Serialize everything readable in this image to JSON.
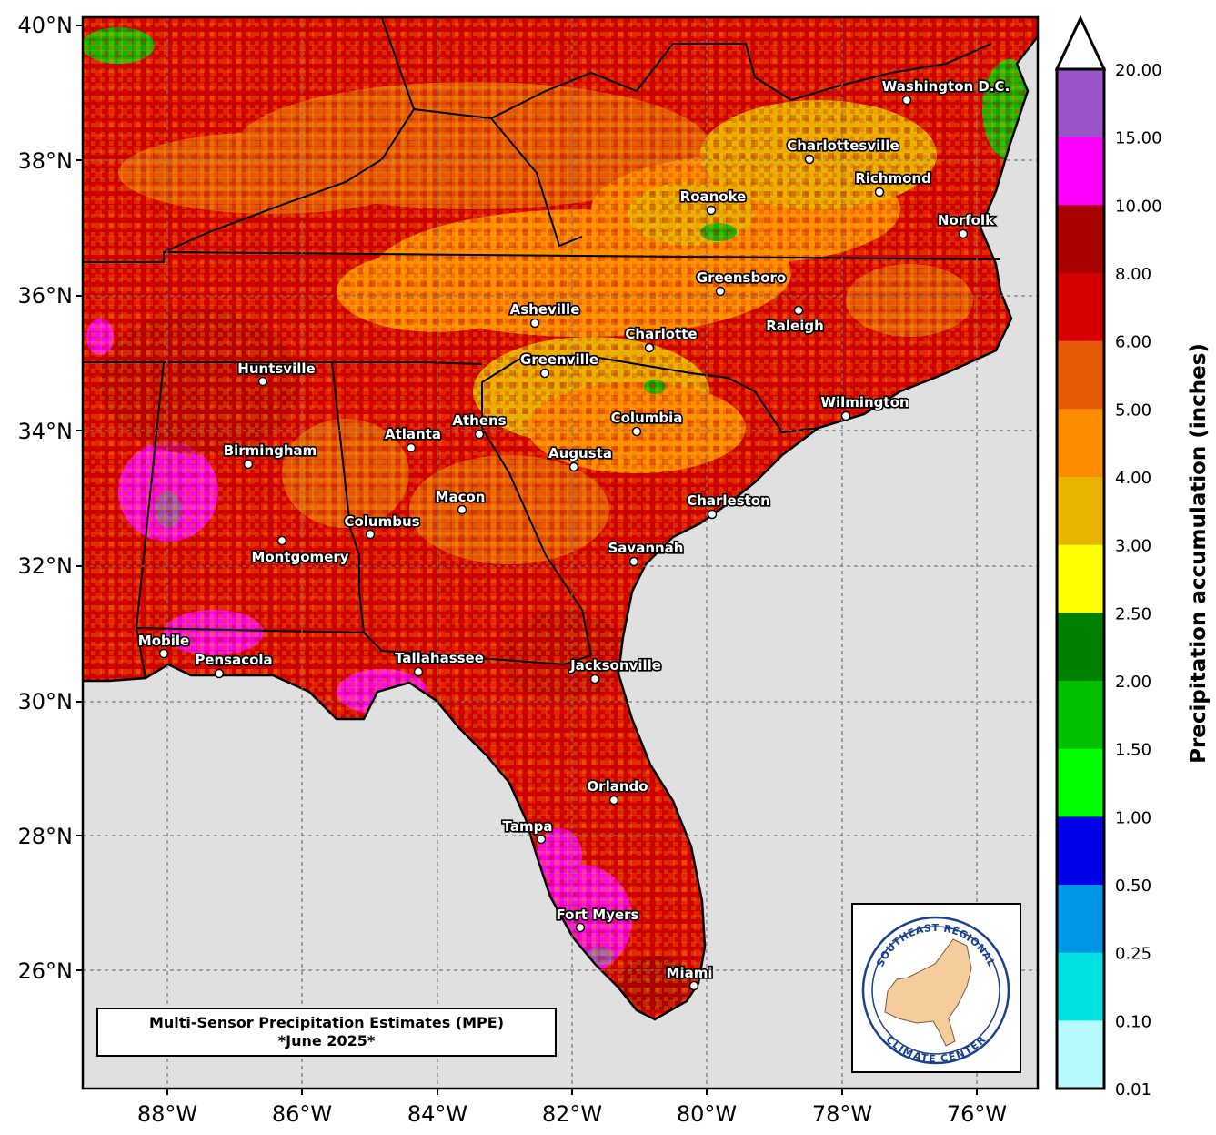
{
  "title": {
    "line1": "Multi-Sensor Precipitation Estimates (MPE)",
    "line2": "*June 2025*"
  },
  "axes": {
    "lat_labels": [
      "40°N",
      "38°N",
      "36°N",
      "34°N",
      "32°N",
      "30°N",
      "28°N",
      "26°N"
    ],
    "lon_labels": [
      "88°W",
      "86°W",
      "84°W",
      "82°W",
      "80°W",
      "78°W",
      "76°W"
    ]
  },
  "colorbar": {
    "title": "Precipitation accumulation (inches)",
    "levels": [
      "20.00",
      "15.00",
      "10.00",
      "8.00",
      "6.00",
      "5.00",
      "4.00",
      "3.00",
      "2.50",
      "2.00",
      "1.50",
      "1.00",
      "0.50",
      "0.25",
      "0.10",
      "0.01"
    ],
    "colors": [
      "#9a55c9",
      "#ff00ff",
      "#aa0000",
      "#d60000",
      "#e65b08",
      "#ff8c00",
      "#e8b400",
      "#ffff00",
      "#007f00",
      "#00c000",
      "#00ff00",
      "#0000e8",
      "#0096e8",
      "#00e1e1",
      "#b5fbfb"
    ]
  },
  "cities": [
    {
      "name": "Washington D.C."
    },
    {
      "name": "Charlottesville"
    },
    {
      "name": "Richmond"
    },
    {
      "name": "Roanoke"
    },
    {
      "name": "Norfolk"
    },
    {
      "name": "Greensboro"
    },
    {
      "name": "Raleigh"
    },
    {
      "name": "Asheville"
    },
    {
      "name": "Charlotte"
    },
    {
      "name": "Greenville"
    },
    {
      "name": "Huntsville"
    },
    {
      "name": "Wilmington"
    },
    {
      "name": "Athens"
    },
    {
      "name": "Columbia"
    },
    {
      "name": "Atlanta"
    },
    {
      "name": "Birmingham"
    },
    {
      "name": "Augusta"
    },
    {
      "name": "Macon"
    },
    {
      "name": "Charleston"
    },
    {
      "name": "Columbus"
    },
    {
      "name": "Montgomery"
    },
    {
      "name": "Savannah"
    },
    {
      "name": "Mobile"
    },
    {
      "name": "Pensacola"
    },
    {
      "name": "Tallahassee"
    },
    {
      "name": "Jacksonville"
    },
    {
      "name": "Orlando"
    },
    {
      "name": "Tampa"
    },
    {
      "name": "Fort Myers"
    },
    {
      "name": "Miami"
    }
  ],
  "logo": {
    "top_text": "SOUTHEAST REGIONAL",
    "bottom_text": "CLIMATE CENTER"
  }
}
